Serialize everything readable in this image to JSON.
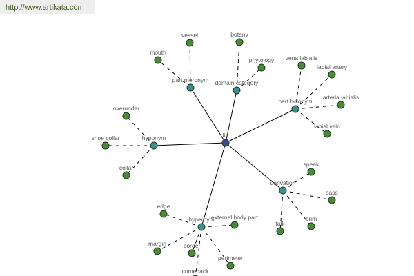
{
  "watermark": "http://www.artikata.com",
  "colors": {
    "center": "#3b4b96",
    "relation": "#3f8f92",
    "leaf": "#4c8a3a",
    "edge": "#000000"
  },
  "graph": {
    "center": "lip",
    "relations": [
      {
        "label": "part meronym",
        "words": [
          "vessel",
          "mouth"
        ]
      },
      {
        "label": "domain category",
        "words": [
          "botany",
          "phytology"
        ]
      },
      {
        "label": "part holonym",
        "words": [
          "vena labialis",
          "labial artery",
          "arteria labialis",
          "labial vein"
        ]
      },
      {
        "label": "hyponym",
        "words": [
          "overunder",
          "shoe collar",
          "collar"
        ]
      },
      {
        "label": "derivation",
        "words": [
          "speak",
          "sass",
          "brim",
          "talk"
        ]
      },
      {
        "label": "hypernym",
        "words": [
          "edge",
          "external body part",
          "margin",
          "border",
          "perimeter",
          "comeback"
        ]
      }
    ]
  }
}
